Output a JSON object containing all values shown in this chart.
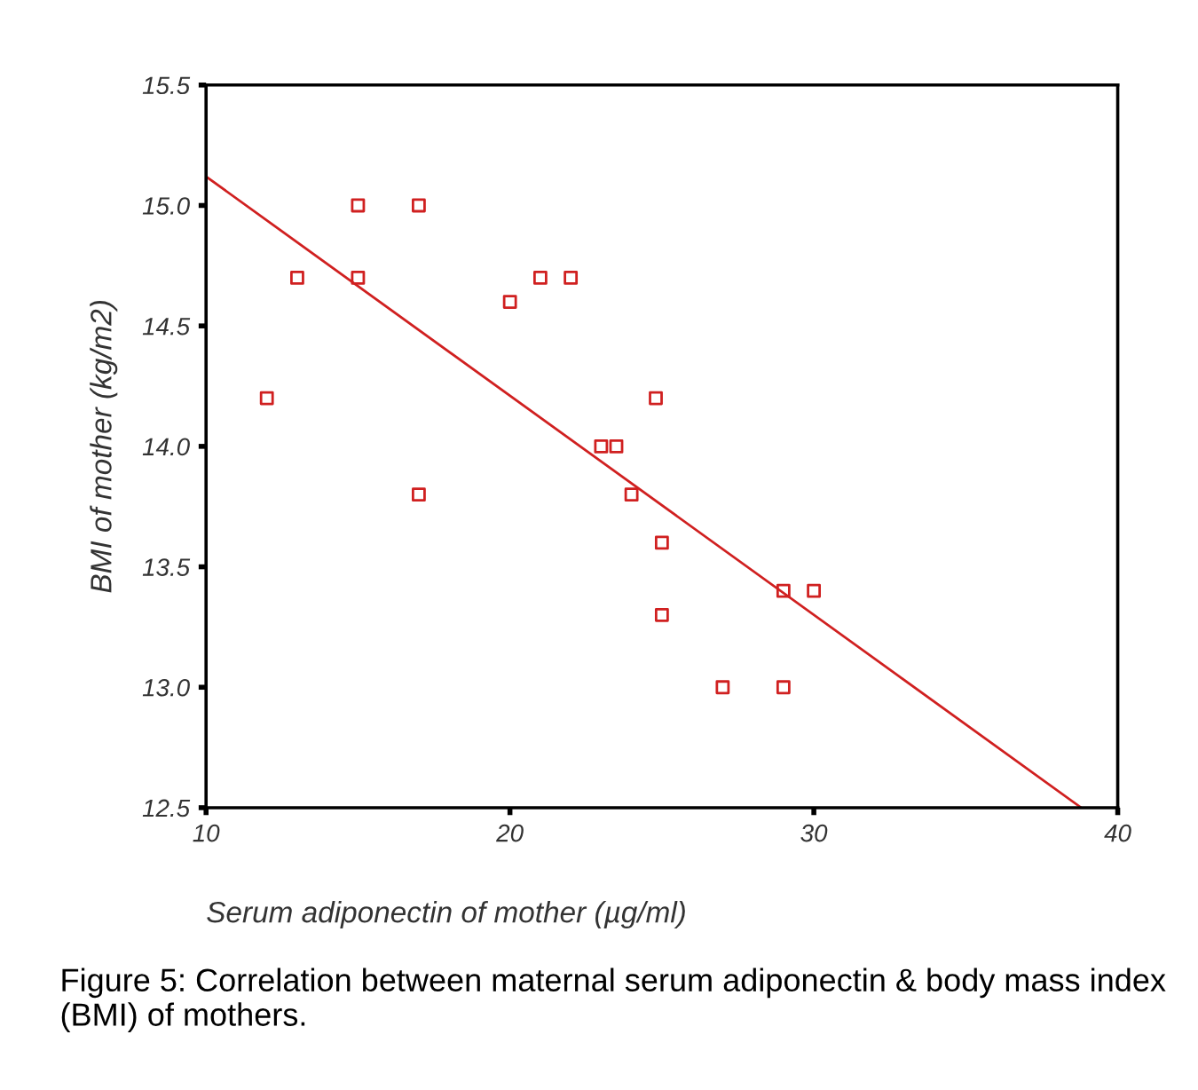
{
  "chart_data": {
    "type": "scatter",
    "xlabel": "Serum adiponectin of mother (µg/ml)",
    "ylabel": "BMI of mother (kg/m2)",
    "xlim": [
      10,
      40
    ],
    "xticks": [
      10,
      20,
      30,
      40
    ],
    "ylim": [
      12.5,
      15.5
    ],
    "yticks": [
      {
        "value": 12.5,
        "label": "12.5"
      },
      {
        "value": 13.0,
        "label": "13.0"
      },
      {
        "value": 13.5,
        "label": "13.5"
      },
      {
        "value": 14.0,
        "label": "14.0"
      },
      {
        "value": 14.5,
        "label": "14.5"
      },
      {
        "value": 15.0,
        "label": "15.0"
      },
      {
        "value": 15.5,
        "label": "15.5"
      }
    ],
    "grid": false,
    "series": [
      {
        "marker": "square",
        "color": "#d02020",
        "x": [
          12,
          13,
          15,
          15,
          17,
          17,
          20,
          21,
          22,
          23,
          23.5,
          24,
          24.8,
          25,
          25,
          27,
          29,
          29,
          30
        ],
        "values": [
          14.2,
          14.7,
          15.0,
          14.7,
          15.0,
          13.8,
          14.6,
          14.7,
          14.7,
          14.0,
          14.0,
          13.8,
          14.2,
          13.6,
          13.3,
          13.0,
          13.4,
          13.0,
          13.4
        ]
      },
      {
        "type": "line",
        "color": "#d02020",
        "line_style": "solid",
        "x": [
          10,
          38.8
        ],
        "values": [
          15.12,
          12.5
        ]
      }
    ],
    "annotations": [
      "Figure 5: Correlation between maternal serum adiponectin & body mass index (BMI) of mothers."
    ]
  }
}
